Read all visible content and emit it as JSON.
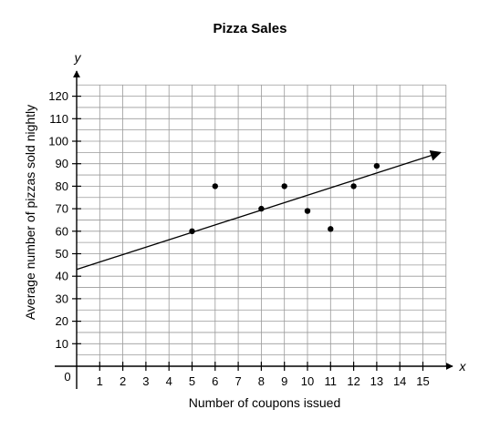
{
  "chart_data": {
    "type": "scatter",
    "title": "Pizza Sales",
    "xlabel": "Number of coupons issued",
    "ylabel": "Average number of pizzas sold nightly",
    "x_var": "x",
    "y_var": "y",
    "origin_label": "0",
    "xlim": [
      0,
      16
    ],
    "ylim": [
      0,
      125
    ],
    "x_ticks": [
      1,
      2,
      3,
      4,
      5,
      6,
      7,
      8,
      9,
      10,
      11,
      12,
      13,
      14,
      15
    ],
    "y_ticks": [
      10,
      20,
      30,
      40,
      50,
      60,
      70,
      80,
      90,
      100,
      110,
      120
    ],
    "grid": true,
    "points": [
      {
        "x": 5,
        "y": 60
      },
      {
        "x": 6,
        "y": 80
      },
      {
        "x": 8,
        "y": 70
      },
      {
        "x": 9,
        "y": 80
      },
      {
        "x": 10,
        "y": 69
      },
      {
        "x": 11,
        "y": 61
      },
      {
        "x": 12,
        "y": 80
      },
      {
        "x": 13,
        "y": 89
      }
    ],
    "trend_line": {
      "x_start": 0,
      "y_start": 43,
      "x_end": 16,
      "y_end": 95,
      "arrow_end": true
    }
  }
}
